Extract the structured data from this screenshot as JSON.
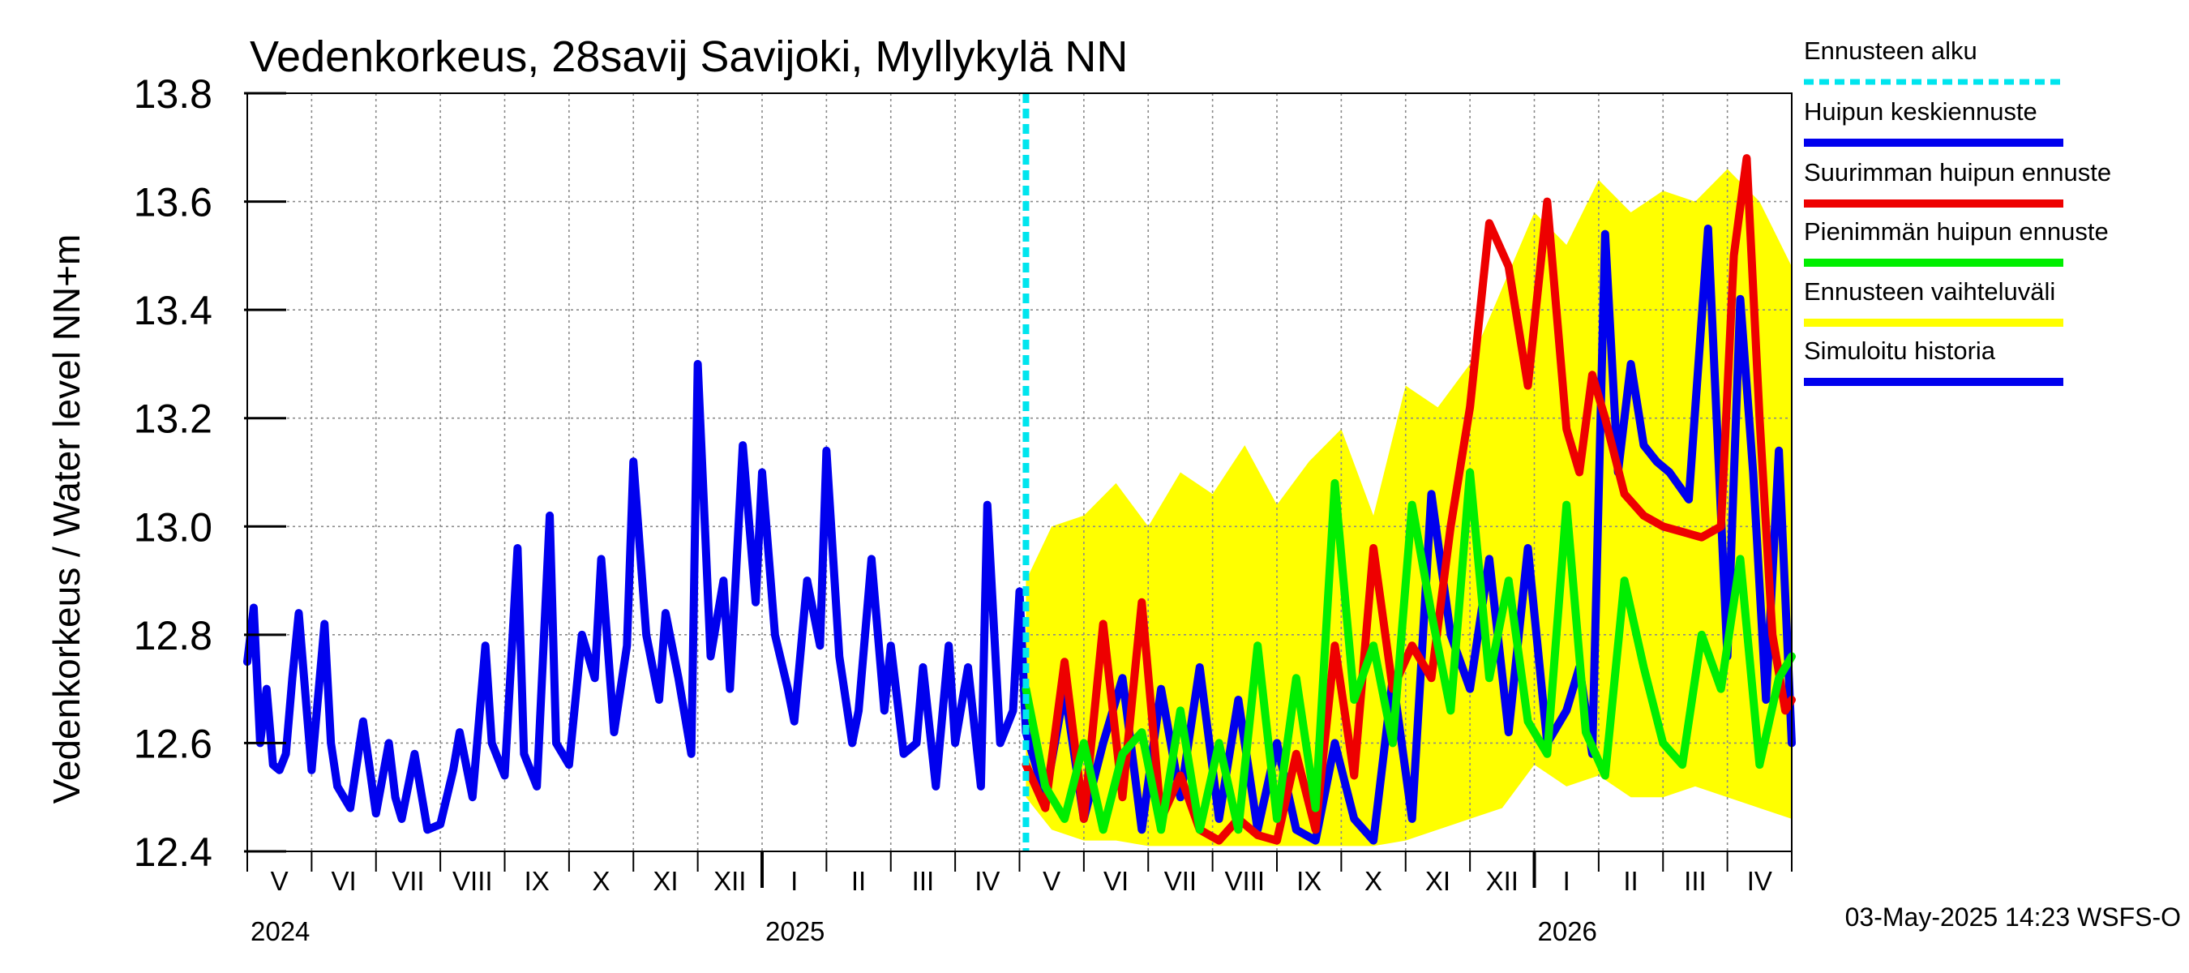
{
  "chart_data": {
    "type": "line",
    "title": "Vedenkorkeus, 28savij Savijoki, Myllykylä NN",
    "ylabel": "Vedenkorkeus / Water level    NN+m",
    "xlabel": "",
    "ylim": [
      12.4,
      13.8
    ],
    "yticks": [
      "12.4",
      "12.6",
      "12.8",
      "13.0",
      "13.2",
      "13.4",
      "13.6",
      "13.8"
    ],
    "x_range_months": [
      0,
      24
    ],
    "forecast_start_month": 12.1,
    "months": [
      "V",
      "VI",
      "VII",
      "VIII",
      "IX",
      "X",
      "XI",
      "XII",
      "I",
      "II",
      "III",
      "IV",
      "V",
      "VI",
      "VII",
      "VIII",
      "IX",
      "X",
      "XI",
      "XII",
      "I",
      "II",
      "III",
      "IV"
    ],
    "years": [
      {
        "label": "2024",
        "month": 0
      },
      {
        "label": "2025",
        "month": 8
      },
      {
        "label": "2026",
        "month": 20
      }
    ],
    "legend": [
      {
        "key": "forecast_start",
        "label": "Ennusteen alku",
        "color": "#00e5ee"
      },
      {
        "key": "mean_peak",
        "label": "Huipun keskiennuste",
        "color": "#0000ee"
      },
      {
        "key": "max_peak",
        "label": "Suurimman huipun ennuste",
        "color": "#ee0000"
      },
      {
        "key": "min_peak",
        "label": "Pienimmän huipun ennuste",
        "color": "#00ee00"
      },
      {
        "key": "range",
        "label": "Ennusteen vaihteluväli",
        "color": "#ffff00"
      },
      {
        "key": "history",
        "label": "Simuloitu historia",
        "color": "#0000ee"
      }
    ],
    "series": [
      {
        "name": "Simuloitu historia",
        "color": "#0000ee",
        "x": [
          0.0,
          0.1,
          0.2,
          0.3,
          0.4,
          0.5,
          0.6,
          0.7,
          0.8,
          1.0,
          1.2,
          1.3,
          1.4,
          1.6,
          1.8,
          2.0,
          2.2,
          2.3,
          2.4,
          2.6,
          2.8,
          3.0,
          3.2,
          3.3,
          3.5,
          3.7,
          3.8,
          4.0,
          4.2,
          4.3,
          4.5,
          4.7,
          4.8,
          5.0,
          5.2,
          5.4,
          5.5,
          5.7,
          5.9,
          6.0,
          6.2,
          6.4,
          6.5,
          6.7,
          6.9,
          7.0,
          7.2,
          7.4,
          7.5,
          7.7,
          7.9,
          8.0,
          8.2,
          8.4,
          8.5,
          8.7,
          8.9,
          9.0,
          9.2,
          9.4,
          9.5,
          9.7,
          9.9,
          10.0,
          10.2,
          10.4,
          10.5,
          10.7,
          10.9,
          11.0,
          11.2,
          11.4,
          11.5,
          11.7,
          11.9,
          12.0,
          12.1
        ],
        "y": [
          12.75,
          12.85,
          12.6,
          12.7,
          12.56,
          12.55,
          12.58,
          12.72,
          12.84,
          12.55,
          12.82,
          12.6,
          12.52,
          12.48,
          12.64,
          12.47,
          12.6,
          12.5,
          12.46,
          12.58,
          12.44,
          12.45,
          12.55,
          12.62,
          12.5,
          12.78,
          12.6,
          12.54,
          12.96,
          12.58,
          12.52,
          13.02,
          12.6,
          12.56,
          12.8,
          12.72,
          12.94,
          12.62,
          12.78,
          13.12,
          12.8,
          12.68,
          12.84,
          12.72,
          12.58,
          13.3,
          12.76,
          12.9,
          12.7,
          13.15,
          12.86,
          13.1,
          12.8,
          12.7,
          12.64,
          12.9,
          12.78,
          13.14,
          12.76,
          12.6,
          12.66,
          12.94,
          12.66,
          12.78,
          12.58,
          12.6,
          12.74,
          12.52,
          12.78,
          12.6,
          12.74,
          12.52,
          13.04,
          12.6,
          12.66,
          12.88,
          12.62
        ]
      },
      {
        "name": "Huipun keskiennuste",
        "color": "#0000ee",
        "x": [
          12.1,
          12.4,
          12.7,
          13.0,
          13.3,
          13.6,
          13.9,
          14.2,
          14.5,
          14.8,
          15.1,
          15.4,
          15.7,
          16.0,
          16.3,
          16.6,
          16.9,
          17.2,
          17.5,
          17.8,
          18.1,
          18.4,
          18.7,
          19.0,
          19.3,
          19.6,
          19.9,
          20.2,
          20.5,
          20.7,
          20.9,
          21.1,
          21.3,
          21.5,
          21.7,
          21.9,
          22.1,
          22.4,
          22.7,
          23.0,
          23.2,
          23.4,
          23.6,
          23.8,
          24.0
        ],
        "y": [
          12.62,
          12.5,
          12.7,
          12.46,
          12.6,
          12.72,
          12.44,
          12.7,
          12.5,
          12.74,
          12.46,
          12.68,
          12.44,
          12.6,
          12.44,
          12.42,
          12.6,
          12.46,
          12.42,
          12.72,
          12.46,
          13.06,
          12.8,
          12.7,
          12.94,
          12.62,
          12.96,
          12.6,
          12.66,
          12.74,
          12.58,
          13.54,
          13.1,
          13.3,
          13.15,
          13.12,
          13.1,
          13.05,
          13.55,
          12.76,
          13.42,
          13.1,
          12.68,
          13.14,
          12.6
        ]
      },
      {
        "name": "Suurimman huipun ennuste",
        "color": "#ee0000",
        "x": [
          12.1,
          12.4,
          12.7,
          13.0,
          13.3,
          13.6,
          13.9,
          14.2,
          14.5,
          14.8,
          15.1,
          15.4,
          15.7,
          16.0,
          16.3,
          16.6,
          16.9,
          17.2,
          17.5,
          17.8,
          18.1,
          18.4,
          18.7,
          19.0,
          19.3,
          19.6,
          19.9,
          20.2,
          20.5,
          20.7,
          20.9,
          21.1,
          21.4,
          21.7,
          22.0,
          22.3,
          22.6,
          22.9,
          23.1,
          23.3,
          23.5,
          23.7,
          23.9,
          24.0
        ],
        "y": [
          12.56,
          12.48,
          12.75,
          12.46,
          12.82,
          12.5,
          12.86,
          12.46,
          12.54,
          12.44,
          12.42,
          12.46,
          12.43,
          12.42,
          12.58,
          12.44,
          12.78,
          12.54,
          12.96,
          12.7,
          12.78,
          12.72,
          13.0,
          13.22,
          13.56,
          13.48,
          13.26,
          13.6,
          13.18,
          13.1,
          13.28,
          13.2,
          13.06,
          13.02,
          13.0,
          12.99,
          12.98,
          13.0,
          13.5,
          13.68,
          13.2,
          12.8,
          12.66,
          12.68
        ]
      },
      {
        "name": "Pienimmän huipun ennuste",
        "color": "#00ee00",
        "x": [
          12.1,
          12.4,
          12.7,
          13.0,
          13.3,
          13.6,
          13.9,
          14.2,
          14.5,
          14.8,
          15.1,
          15.4,
          15.7,
          16.0,
          16.3,
          16.6,
          16.9,
          17.2,
          17.5,
          17.8,
          18.1,
          18.4,
          18.7,
          19.0,
          19.3,
          19.6,
          19.9,
          20.2,
          20.5,
          20.8,
          21.1,
          21.4,
          21.7,
          22.0,
          22.3,
          22.6,
          22.9,
          23.2,
          23.5,
          23.8,
          24.0
        ],
        "y": [
          12.7,
          12.52,
          12.46,
          12.6,
          12.44,
          12.58,
          12.62,
          12.44,
          12.66,
          12.44,
          12.6,
          12.44,
          12.78,
          12.46,
          12.72,
          12.48,
          13.08,
          12.68,
          12.78,
          12.6,
          13.04,
          12.84,
          12.66,
          13.1,
          12.72,
          12.9,
          12.64,
          12.58,
          13.04,
          12.62,
          12.54,
          12.9,
          12.74,
          12.6,
          12.56,
          12.8,
          12.7,
          12.94,
          12.56,
          12.72,
          12.76
        ]
      },
      {
        "name": "Ennusteen vaihteluväli",
        "color": "#ffff00",
        "type": "area",
        "x": [
          12.1,
          12.5,
          13.0,
          13.5,
          14.0,
          14.5,
          15.0,
          15.5,
          16.0,
          16.5,
          17.0,
          17.5,
          18.0,
          18.5,
          19.0,
          19.5,
          20.0,
          20.5,
          21.0,
          21.5,
          22.0,
          22.5,
          23.0,
          23.5,
          24.0
        ],
        "upper": [
          12.9,
          13.0,
          13.02,
          13.08,
          13.0,
          13.1,
          13.06,
          13.15,
          13.04,
          13.12,
          13.18,
          13.02,
          13.26,
          13.22,
          13.3,
          13.44,
          13.58,
          13.52,
          13.64,
          13.58,
          13.62,
          13.6,
          13.66,
          13.6,
          13.48
        ],
        "lower": [
          12.5,
          12.44,
          12.42,
          12.42,
          12.41,
          12.41,
          12.41,
          12.41,
          12.41,
          12.41,
          12.41,
          12.41,
          12.42,
          12.44,
          12.46,
          12.48,
          12.56,
          12.52,
          12.54,
          12.5,
          12.5,
          12.52,
          12.5,
          12.48,
          12.46
        ]
      }
    ]
  },
  "footer": "03-May-2025 14:23 WSFS-O"
}
